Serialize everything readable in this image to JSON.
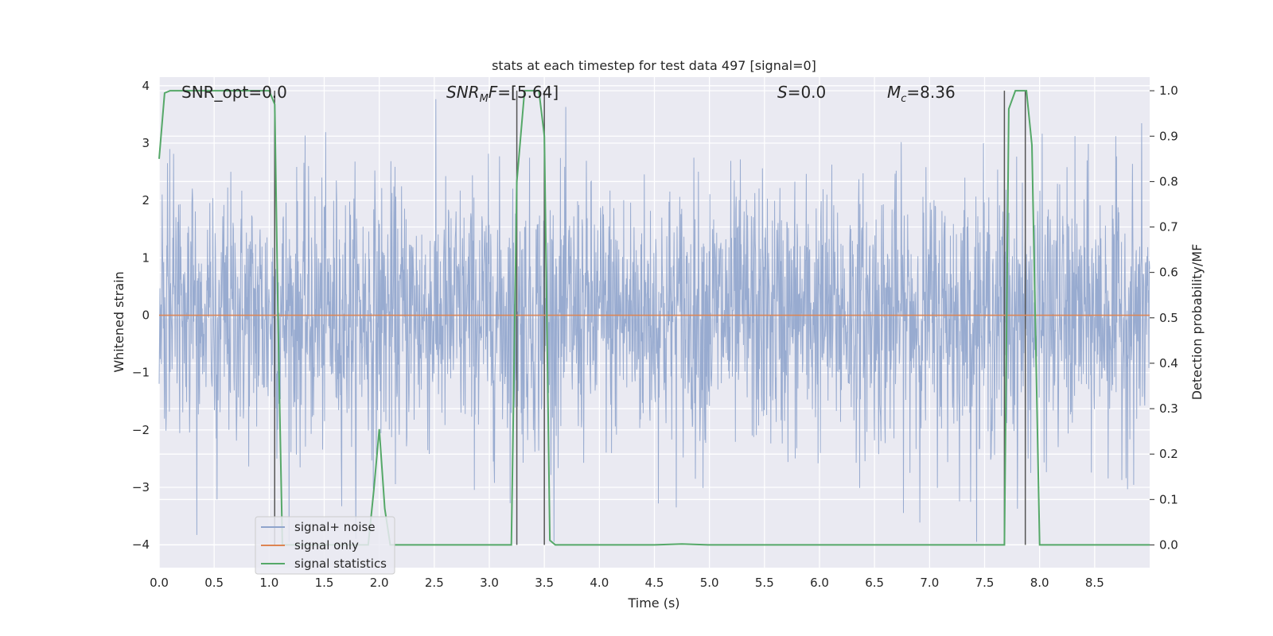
{
  "chart_data": {
    "type": "line",
    "title": "stats at each timestep for test data 497 [signal=0]",
    "xlabel": "Time (s)",
    "ylabel_left": "Whitened strain",
    "ylabel_right": "Detection probability/MF",
    "xlim": [
      0,
      9.0
    ],
    "ylim_left": [
      -4.4,
      4.15
    ],
    "ylim_right": [
      -0.05,
      1.03
    ],
    "x_ticks": [
      "0.0",
      "0.5",
      "1.0",
      "1.5",
      "2.0",
      "2.5",
      "3.0",
      "3.5",
      "4.0",
      "4.5",
      "5.0",
      "5.5",
      "6.0",
      "6.5",
      "7.0",
      "7.5",
      "8.0",
      "8.5"
    ],
    "y_ticks_left": [
      "4",
      "3",
      "2",
      "1",
      "0",
      "−1",
      "−2",
      "−3",
      "−4"
    ],
    "y_ticks_right": [
      "1.0",
      "0.9",
      "0.8",
      "0.7",
      "0.6",
      "0.5",
      "0.4",
      "0.3",
      "0.2",
      "0.1",
      "0.0"
    ],
    "grid": true,
    "legend_position": "lower-left",
    "annotations": [
      {
        "id": "snr_opt",
        "text": "SNR_opt=0.0"
      },
      {
        "id": "snr_mf",
        "text": "SNR_MF=[5.64]"
      },
      {
        "id": "s",
        "text": "S=0.0"
      },
      {
        "id": "mc",
        "text": "M_c=8.36"
      }
    ],
    "series": [
      {
        "name": "signal+ noise",
        "color": "#8fa4cc",
        "description": "whitened strain noise, amplitude roughly within ±4"
      },
      {
        "name": "signal only",
        "color": "#dd8452",
        "x": [
          0,
          9.0
        ],
        "y": [
          0,
          0
        ]
      },
      {
        "name": "signal statistics",
        "color": "#55a868",
        "axis": "right",
        "x": [
          0.0,
          0.05,
          0.1,
          0.2,
          0.5,
          0.8,
          1.0,
          1.05,
          1.08,
          1.12,
          1.2,
          1.5,
          1.9,
          1.95,
          2.0,
          2.05,
          2.1,
          2.5,
          3.0,
          3.2,
          3.25,
          3.32,
          3.4,
          3.45,
          3.5,
          3.55,
          3.6,
          4.0,
          4.5,
          4.75,
          5.0,
          6.0,
          7.0,
          7.5,
          7.68,
          7.72,
          7.78,
          7.83,
          7.88,
          7.93,
          8.0,
          8.5,
          9.0
        ],
        "y": [
          0.85,
          0.995,
          1.0,
          1.0,
          1.0,
          1.0,
          1.0,
          0.97,
          0.5,
          0.0,
          0.0,
          0.0,
          0.0,
          0.12,
          0.255,
          0.08,
          0.0,
          0.0,
          0.0,
          0.0,
          0.8,
          1.0,
          1.0,
          1.0,
          0.9,
          0.01,
          0.0,
          0.0,
          0.0,
          0.002,
          0.0,
          0.0,
          0.0,
          0.0,
          0.0,
          0.96,
          1.0,
          1.0,
          1.0,
          0.88,
          0.0,
          0.0,
          0.0
        ]
      }
    ],
    "vertical_markers_x": [
      1.05,
      3.25,
      3.5,
      7.68,
      7.87
    ]
  },
  "legend": {
    "items": [
      {
        "label": "signal+ noise",
        "color": "#8fa4cc"
      },
      {
        "label": "signal only",
        "color": "#dd8452"
      },
      {
        "label": "signal statistics",
        "color": "#55a868"
      }
    ]
  }
}
